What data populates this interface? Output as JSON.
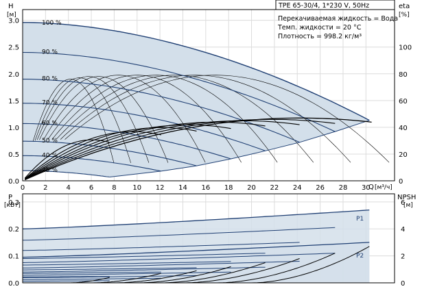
{
  "header": {
    "pump": "TPE 65-30/4, 1*230 V, 50Hz",
    "fluid": "Перекачиваемая жидкость = Вода",
    "temp": "Темп. жидкости = 20 °C",
    "density": "Плотность = 998.2 кг/м³"
  },
  "chart_data": [
    {
      "type": "line",
      "name": "Q-H",
      "ylabel": "H",
      "yunit": "[м]",
      "xlabel": "Q",
      "xunit": "[м³/ч]",
      "y2label": "eta",
      "y2unit": "[%]",
      "xlim": [
        0,
        32.5
      ],
      "ylim": [
        0,
        3.2
      ],
      "y2lim": [
        0,
        128
      ],
      "xticks": [
        0,
        2,
        4,
        6,
        8,
        10,
        12,
        14,
        16,
        18,
        20,
        22,
        24,
        26,
        28,
        30
      ],
      "yticks": [
        "0.0",
        "0.5",
        "1.0",
        "1.5",
        "2.0",
        "2.5",
        "3.0"
      ],
      "y2ticks": [
        0,
        20,
        40,
        60,
        80,
        100
      ],
      "grid": true,
      "speed_curves": [
        {
          "label": "100 %",
          "h0": 2.96,
          "qmax": 30.3,
          "hend": 1.13
        },
        {
          "label": "90 %",
          "h0": 2.4,
          "qmax": 27.3,
          "hend": 0.92
        },
        {
          "label": "80 %",
          "h0": 1.9,
          "qmax": 24.2,
          "hend": 0.72
        },
        {
          "label": "70 %",
          "h0": 1.45,
          "qmax": 21.2,
          "hend": 0.56
        },
        {
          "label": "60 %",
          "h0": 1.07,
          "qmax": 18.2,
          "hend": 0.41
        },
        {
          "label": "50 %",
          "h0": 0.74,
          "qmax": 15.2,
          "hend": 0.28
        },
        {
          "label": "40 %",
          "h0": 0.47,
          "qmax": 12.1,
          "hend": 0.18
        },
        {
          "label": "25 %",
          "h0": 0.19,
          "qmax": 7.6,
          "hend": 0.07
        }
      ],
      "eta_curves": [
        {
          "peak": 46,
          "qmax": 30.5
        },
        {
          "peak": 45,
          "qmax": 27.3
        },
        {
          "peak": 44,
          "qmax": 24.2
        },
        {
          "peak": 43,
          "qmax": 21.2
        },
        {
          "peak": 41,
          "qmax": 18.2
        },
        {
          "peak": 39,
          "qmax": 15.2
        },
        {
          "peak": 36,
          "qmax": 12.1
        },
        {
          "peak": 30,
          "qmax": 7.6
        }
      ],
      "eta_thin_curves": [
        {
          "peak": 79,
          "qmax": 30.5
        },
        {
          "peak": 79,
          "qmax": 27.3
        },
        {
          "peak": 79,
          "qmax": 24.2
        },
        {
          "peak": 79,
          "qmax": 21.2
        },
        {
          "peak": 79,
          "qmax": 18.2
        },
        {
          "peak": 79,
          "qmax": 15.2
        },
        {
          "peak": 78,
          "qmax": 12.1
        },
        {
          "peak": 78,
          "qmax": 10.5
        },
        {
          "peak": 77,
          "qmax": 9.0
        },
        {
          "peak": 76,
          "qmax": 7.6
        }
      ]
    },
    {
      "type": "line",
      "name": "P-NPSH",
      "ylabel": "P",
      "yunit": "[кВт]",
      "y2label": "NPSH",
      "y2unit": "[м]",
      "xlim": [
        0,
        32.5
      ],
      "ylim": [
        0,
        0.33
      ],
      "y2lim": [
        0,
        6.6
      ],
      "yticks": [
        "0.0",
        "0.1",
        "0.2",
        "0.3"
      ],
      "y2ticks": [
        0,
        2,
        4,
        6
      ],
      "grid": true,
      "series_labels": {
        "p1": "P1",
        "p2": "P2"
      },
      "p1_curves": [
        {
          "p0": 0.2,
          "pend": 0.27,
          "qmax": 30.3
        },
        {
          "p0": 0.158,
          "pend": 0.205,
          "qmax": 27.3
        },
        {
          "p0": 0.12,
          "pend": 0.15,
          "qmax": 24.2
        },
        {
          "p0": 0.09,
          "pend": 0.11,
          "qmax": 21.2
        },
        {
          "p0": 0.066,
          "pend": 0.079,
          "qmax": 18.2
        },
        {
          "p0": 0.048,
          "pend": 0.056,
          "qmax": 15.2
        },
        {
          "p0": 0.035,
          "pend": 0.04,
          "qmax": 12.1
        },
        {
          "p0": 0.022,
          "pend": 0.024,
          "qmax": 7.6
        }
      ],
      "p2_curves": [
        {
          "p0": 0.095,
          "pend": 0.15,
          "qmax": 30.3
        },
        {
          "p0": 0.075,
          "pend": 0.11,
          "qmax": 27.3
        },
        {
          "p0": 0.055,
          "pend": 0.08,
          "qmax": 24.2
        },
        {
          "p0": 0.04,
          "pend": 0.058,
          "qmax": 21.2
        },
        {
          "p0": 0.028,
          "pend": 0.04,
          "qmax": 18.2
        },
        {
          "p0": 0.019,
          "pend": 0.027,
          "qmax": 15.2
        },
        {
          "p0": 0.012,
          "pend": 0.017,
          "qmax": 12.1
        },
        {
          "p0": 0.006,
          "pend": 0.008,
          "qmax": 7.6
        }
      ],
      "npsh_curves": [
        {
          "qstart": 20,
          "qmax": 30.3,
          "nend": 2.7
        },
        {
          "qstart": 17,
          "qmax": 27.3,
          "nend": 2.2
        },
        {
          "qstart": 14,
          "qmax": 24.2,
          "nend": 1.8
        },
        {
          "qstart": 12,
          "qmax": 21.2,
          "nend": 1.5
        },
        {
          "qstart": 10,
          "qmax": 18.2,
          "nend": 1.2
        },
        {
          "qstart": 8,
          "qmax": 15.2,
          "nend": 0.9
        },
        {
          "qstart": 6,
          "qmax": 12.1,
          "nend": 0.7
        },
        {
          "qstart": 4,
          "qmax": 7.6,
          "nend": 0.4
        }
      ]
    }
  ],
  "colors": {
    "fill": "#d3dfea",
    "curve": "#1f3f73",
    "eta_bold": "#000000",
    "grid": "#dcdcdc"
  }
}
